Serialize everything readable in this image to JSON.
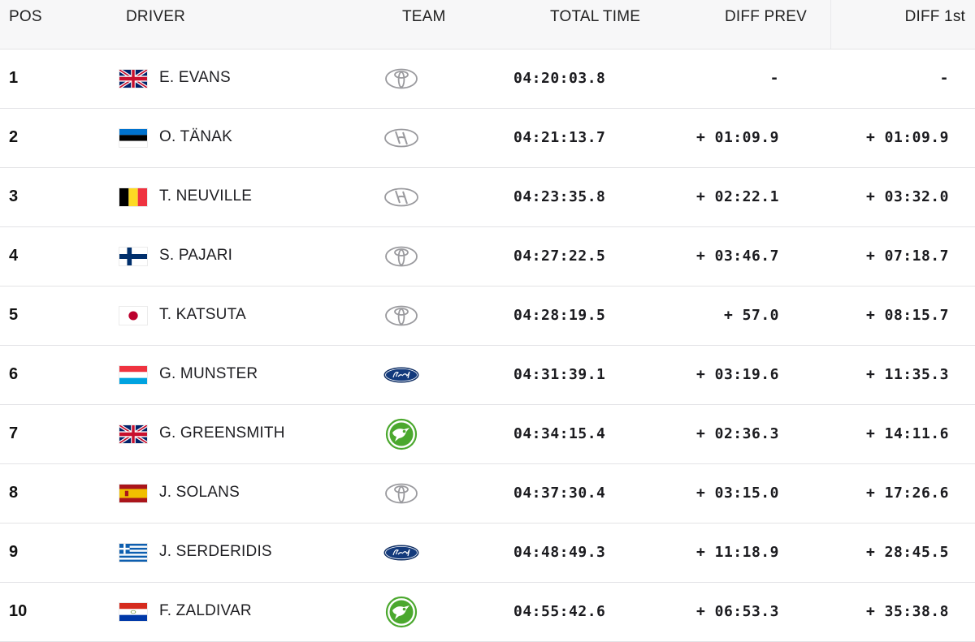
{
  "header": {
    "pos": "POS",
    "driver": "DRIVER",
    "team": "TEAM",
    "total_time": "TOTAL TIME",
    "diff_prev": "DIFF PREV",
    "diff_first": "DIFF 1st"
  },
  "rows": [
    {
      "pos": "1",
      "flag": "gb-flag-icon",
      "driver": "E. EVANS",
      "team": "toyota-logo-icon",
      "total": "04:20:03.8",
      "diff_prev": "-",
      "diff_first": "-"
    },
    {
      "pos": "2",
      "flag": "ee-flag-icon",
      "driver": "O. TÄNAK",
      "team": "hyundai-logo-icon",
      "total": "04:21:13.7",
      "diff_prev": "+ 01:09.9",
      "diff_first": "+ 01:09.9"
    },
    {
      "pos": "3",
      "flag": "be-flag-icon",
      "driver": "T. NEUVILLE",
      "team": "hyundai-logo-icon",
      "total": "04:23:35.8",
      "diff_prev": "+ 02:22.1",
      "diff_first": "+ 03:32.0"
    },
    {
      "pos": "4",
      "flag": "fi-flag-icon",
      "driver": "S. PAJARI",
      "team": "toyota-logo-icon",
      "total": "04:27:22.5",
      "diff_prev": "+ 03:46.7",
      "diff_first": "+ 07:18.7"
    },
    {
      "pos": "5",
      "flag": "jp-flag-icon",
      "driver": "T. KATSUTA",
      "team": "toyota-logo-icon",
      "total": "04:28:19.5",
      "diff_prev": "+ 57.0",
      "diff_first": "+ 08:15.7"
    },
    {
      "pos": "6",
      "flag": "lu-flag-icon",
      "driver": "G. MUNSTER",
      "team": "ford-logo-icon",
      "total": "04:31:39.1",
      "diff_prev": "+ 03:19.6",
      "diff_first": "+ 11:35.3"
    },
    {
      "pos": "7",
      "flag": "gb-flag-icon",
      "driver": "G. GREENSMITH",
      "team": "skoda-logo-icon",
      "total": "04:34:15.4",
      "diff_prev": "+ 02:36.3",
      "diff_first": "+ 14:11.6"
    },
    {
      "pos": "8",
      "flag": "es-flag-icon",
      "driver": "J. SOLANS",
      "team": "toyota-logo-icon",
      "total": "04:37:30.4",
      "diff_prev": "+ 03:15.0",
      "diff_first": "+ 17:26.6"
    },
    {
      "pos": "9",
      "flag": "gr-flag-icon",
      "driver": "J. SERDERIDIS",
      "team": "ford-logo-icon",
      "total": "04:48:49.3",
      "diff_prev": "+ 11:18.9",
      "diff_first": "+ 28:45.5"
    },
    {
      "pos": "10",
      "flag": "py-flag-icon",
      "driver": "F. ZALDIVAR",
      "team": "skoda-logo-icon",
      "total": "04:55:42.6",
      "diff_prev": "+ 06:53.3",
      "diff_first": "+ 35:38.8"
    }
  ],
  "colors": {
    "header_bg": "#f7f7f8",
    "row_border": "#e3e3e6",
    "skoda_green": "#4ba82e",
    "ford_blue": "#133a7c"
  }
}
